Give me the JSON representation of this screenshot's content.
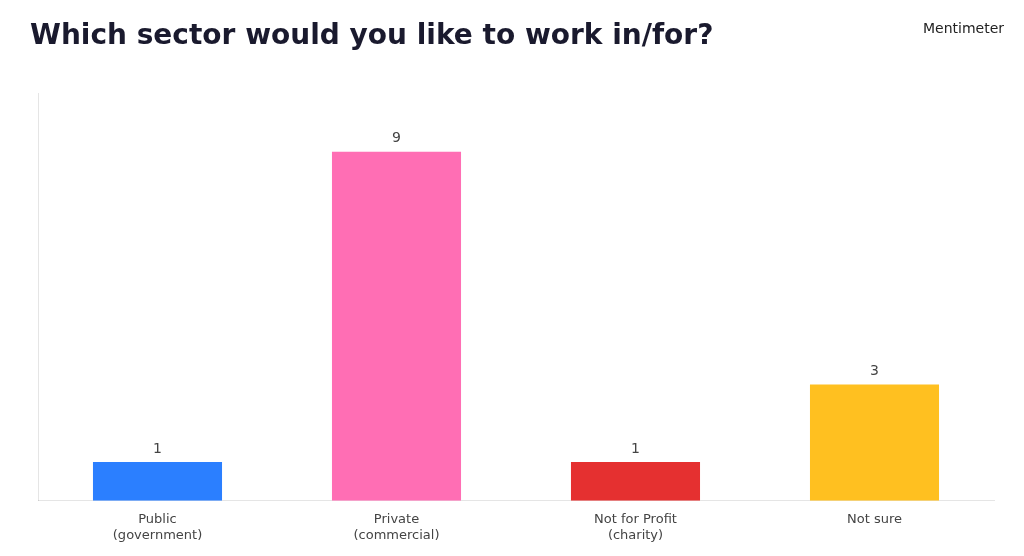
{
  "chart_data": {
    "type": "bar",
    "title": "Which sector would you like to work in/for?",
    "annotations": [
      "Mentimeter"
    ],
    "categories": [
      "Public\n(government)",
      "Private\n(commercial)",
      "Not for Profit\n(charity)",
      "Not sure"
    ],
    "values": [
      1,
      9,
      1,
      3
    ],
    "colors": [
      "#2B7FFF",
      "#FF6EB4",
      "#E53030",
      "#FFC020"
    ],
    "ylim": [
      0,
      10.5
    ],
    "grid": false,
    "data_labels": true,
    "tick_labels": "x"
  }
}
